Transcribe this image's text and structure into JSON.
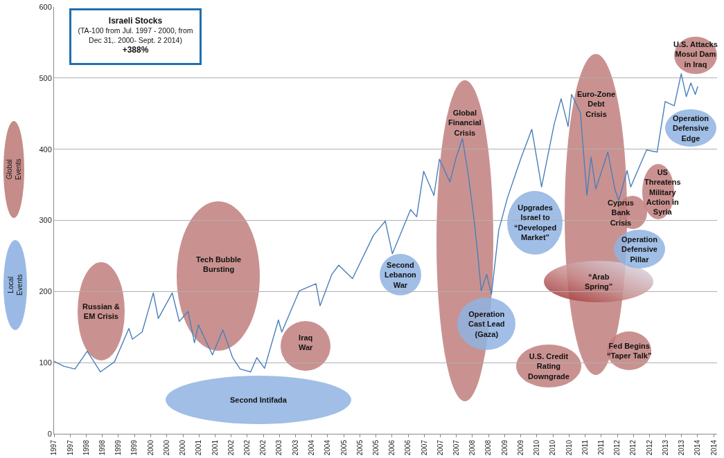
{
  "chart_data": {
    "type": "line",
    "title": "Israeli Stocks",
    "subtitle": "(TA-100 from Jul. 1997 - 2000, from Dec 31,. 2000- Sept. 2 2014)",
    "annotations": [
      "+388%",
      "Global Events",
      "Local Events",
      "Russian & EM Crisis",
      "Tech Bubble Bursting",
      "Second Intifada",
      "Iraq War",
      "Second Lebanon War",
      "Global Financial Crisis",
      "Operation Cast Lead (Gaza)",
      "Upgrades Israel to “Developed Market”",
      "U.S. Credit Rating Downgrade",
      "Euro-Zone Debt Crisis",
      "“Arab Spring”",
      "Fed Begins “Taper Talk”",
      "Cyprus Bank Crisis",
      "US Threatens Military Action in Syria",
      "Operation Defensive Pillar",
      "U.S. Attacks Mosul Dam in Iraq",
      "Operation Defensive Edge"
    ],
    "x": [
      "1997-07-01",
      "1997-10-01",
      "1998-01-15",
      "1998-05-11",
      "1998-09-13",
      "1999-01-23",
      "1999-06-09",
      "1999-07-12",
      "1999-10-12",
      "2000-01-26",
      "2000-03-13",
      "2000-07-23",
      "2000-09-27",
      "2000-12-20",
      "2001-02-18",
      "2001-03-27",
      "2001-08-07",
      "2001-11-14",
      "2002-02-14",
      "2002-04-26",
      "2002-08-03",
      "2002-10-01",
      "2002-12-13",
      "2003-04-23",
      "2003-05-25",
      "2003-11-07",
      "2004-04-12",
      "2004-05-21",
      "2004-09-09",
      "2004-11-14",
      "2005-03-24",
      "2005-10-08",
      "2006-01-28",
      "2006-04-05",
      "2006-09-24",
      "2006-11-21",
      "2007-01-26",
      "2007-05-03",
      "2007-06-24",
      "2007-10-01",
      "2007-11-25",
      "2008-01-28",
      "2008-03-27",
      "2008-05-18",
      "2008-06-20",
      "2008-07-23",
      "2008-09-13",
      "2008-10-28",
      "2009-01-05",
      "2009-03-27",
      "2009-07-01",
      "2009-08-07",
      "2009-11-14",
      "2010-02-14",
      "2010-06-13",
      "2010-08-18",
      "2010-10-23",
      "2010-11-25",
      "2011-02-18",
      "2011-03-02",
      "2011-04-19",
      "2011-05-28",
      "2011-07-12",
      "2011-11-03",
      "2012-01-08",
      "2012-02-14",
      "2012-05-03",
      "2012-06-06",
      "2012-11-03",
      "2013-02-11",
      "2013-04-28",
      "2013-07-23",
      "2013-09-27",
      "2013-11-14",
      "2013-12-27",
      "2014-02-07",
      "2014-03-02"
    ],
    "values": [
      102,
      95,
      91,
      116,
      87,
      101,
      148,
      133,
      143,
      198,
      162,
      198,
      158,
      172,
      128,
      153,
      111,
      146,
      107,
      91,
      87,
      107,
      92,
      160,
      143,
      201,
      211,
      180,
      224,
      237,
      218,
      279,
      299,
      253,
      315,
      305,
      369,
      335,
      386,
      354,
      386,
      415,
      360,
      299,
      253,
      201,
      224,
      196,
      286,
      331,
      373,
      389,
      428,
      347,
      435,
      471,
      432,
      477,
      451,
      425,
      335,
      389,
      344,
      396,
      344,
      328,
      370,
      347,
      399,
      396,
      467,
      461,
      506,
      474,
      493,
      477,
      488
    ],
    "color": "#4a7ebb",
    "xlim": [
      "1997-07-01",
      "2014-09-01"
    ],
    "xticks": [
      {
        "value": "1997-07",
        "label": "1997"
      },
      {
        "value": "1997-12",
        "label": "1997"
      },
      {
        "value": "1998-05",
        "label": "1998"
      },
      {
        "value": "1998-10",
        "label": "1998"
      },
      {
        "value": "1999-03",
        "label": "1999"
      },
      {
        "value": "1999-08",
        "label": "1999"
      },
      {
        "value": "2000-01",
        "label": "2000"
      },
      {
        "value": "2000-06",
        "label": "2000"
      },
      {
        "value": "2000-11",
        "label": "2000"
      },
      {
        "value": "2001-04",
        "label": "2001"
      },
      {
        "value": "2001-09",
        "label": "2001"
      },
      {
        "value": "2002-02",
        "label": "2002"
      },
      {
        "value": "2002-07",
        "label": "2002"
      },
      {
        "value": "2002-12",
        "label": "2002"
      },
      {
        "value": "2003-05",
        "label": "2003"
      },
      {
        "value": "2003-10",
        "label": "2003"
      },
      {
        "value": "2004-03",
        "label": "2004"
      },
      {
        "value": "2004-08",
        "label": "2004"
      },
      {
        "value": "2005-01",
        "label": "2005"
      },
      {
        "value": "2005-06",
        "label": "2005"
      },
      {
        "value": "2005-11",
        "label": "2005"
      },
      {
        "value": "2006-04",
        "label": "2006"
      },
      {
        "value": "2006-09",
        "label": "2006"
      },
      {
        "value": "2007-02",
        "label": "2007"
      },
      {
        "value": "2007-07",
        "label": "2007"
      },
      {
        "value": "2007-12",
        "label": "2007"
      },
      {
        "value": "2008-05",
        "label": "2008"
      },
      {
        "value": "2008-10",
        "label": "2008"
      },
      {
        "value": "2009-03",
        "label": "2009"
      },
      {
        "value": "2009-08",
        "label": "2009"
      },
      {
        "value": "2010-01",
        "label": "2010"
      },
      {
        "value": "2010-06",
        "label": "2010"
      },
      {
        "value": "2010-11",
        "label": "2010"
      },
      {
        "value": "2011-04",
        "label": "2011"
      },
      {
        "value": "2011-09",
        "label": "2011"
      },
      {
        "value": "2012-02",
        "label": "2012"
      },
      {
        "value": "2012-07",
        "label": "2012"
      },
      {
        "value": "2012-12",
        "label": "2012"
      },
      {
        "value": "2013-05",
        "label": "2013"
      },
      {
        "value": "2013-10",
        "label": "2013"
      },
      {
        "value": "2014-03",
        "label": "2014"
      },
      {
        "value": "2014-08",
        "label": "2014"
      }
    ],
    "ylim": [
      0,
      600
    ],
    "yticks": [
      0,
      100,
      200,
      300,
      400,
      500,
      600
    ],
    "grid": "y"
  }
}
